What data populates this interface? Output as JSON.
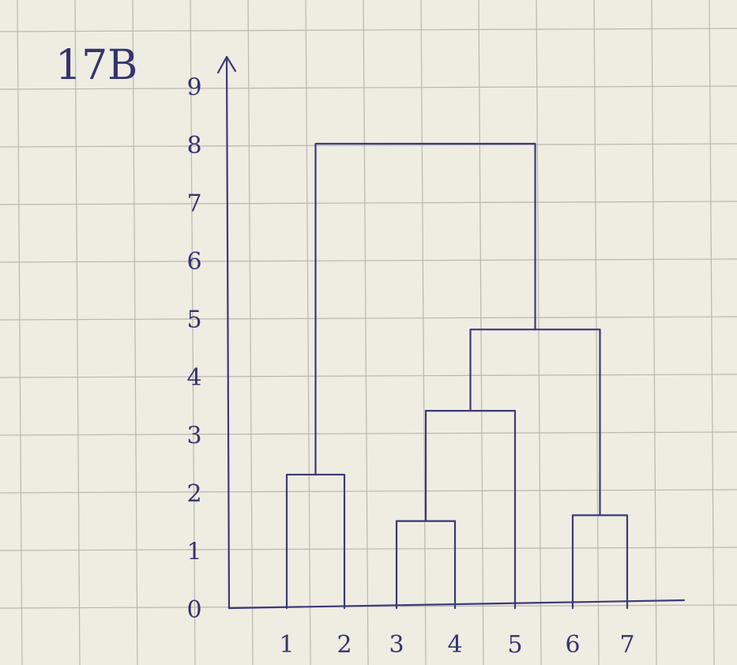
{
  "page_label": "17B",
  "chart_data": {
    "type": "dendrogram",
    "title": "",
    "xlabel": "",
    "ylabel": "",
    "ylim": [
      0,
      9
    ],
    "y_ticks": [
      "0",
      "1",
      "2",
      "3",
      "4",
      "5",
      "6",
      "7",
      "8",
      "9"
    ],
    "leaves": [
      "1",
      "2",
      "3",
      "4",
      "5",
      "6",
      "7"
    ],
    "merges": [
      {
        "id": "m12",
        "left": "1",
        "right": "2",
        "height": 2.3
      },
      {
        "id": "m34",
        "left": "3",
        "right": "4",
        "height": 1.5
      },
      {
        "id": "m67",
        "left": "6",
        "right": "7",
        "height": 1.6
      },
      {
        "id": "m345",
        "left": "m34",
        "right": "5",
        "height": 3.4
      },
      {
        "id": "m34567",
        "left": "m345",
        "right": "m67",
        "height": 4.8
      },
      {
        "id": "mall",
        "left": "m12",
        "right": "m34567",
        "height": 8.0
      }
    ],
    "colors": {
      "ink": "#3a3a78",
      "paper": "#efece2",
      "grid": "#b9b7ae"
    },
    "grid": true
  }
}
